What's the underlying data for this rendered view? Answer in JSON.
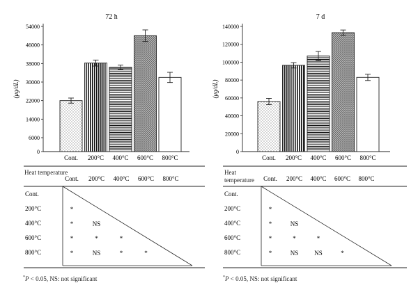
{
  "chart_data": [
    {
      "type": "bar",
      "title": "72 h",
      "ylabel": "(μg/dL)",
      "categories": [
        "Cont.",
        "200°C",
        "400°C",
        "600°C",
        "800°C"
      ],
      "values": [
        22000,
        38200,
        36400,
        50000,
        32000
      ],
      "errors": [
        1100,
        1300,
        900,
        2500,
        2200
      ],
      "ylim": [
        0,
        54000
      ],
      "yticks": [
        "0",
        "6000",
        "14000",
        "22000",
        "30000",
        "38000",
        "46000",
        "54000"
      ],
      "patterns": [
        "dots",
        "vlines",
        "hlines",
        "crosshatch",
        "none"
      ],
      "significance": {
        "header_label": "Heat temperature",
        "rows": [
          "Cont.",
          "200°C",
          "400°C",
          "600°C",
          "800°C"
        ],
        "cols": [
          "Cont.",
          "200°C",
          "400°C",
          "600°C",
          "800°C"
        ],
        "matrix": [
          [],
          [
            "*"
          ],
          [
            "*",
            "NS"
          ],
          [
            "*",
            "*",
            "*"
          ],
          [
            "*",
            "NS",
            "*",
            "*"
          ]
        ]
      },
      "footnote": {
        "star": "*",
        "p": "P",
        "rest": " < 0.05, NS: not significant"
      }
    },
    {
      "type": "bar",
      "title": "7 d",
      "ylabel": "(μg/dL)",
      "categories": [
        "Cont.",
        "200°C",
        "400°C",
        "600°C",
        "800°C"
      ],
      "values": [
        56000,
        96500,
        107000,
        133000,
        83000
      ],
      "errors": [
        3500,
        3000,
        5000,
        3000,
        3500
      ],
      "ylim": [
        0,
        140000
      ],
      "yticks": [
        "0",
        "20000",
        "40000",
        "60000",
        "80000",
        "100000",
        "120000",
        "140000"
      ],
      "patterns": [
        "dots",
        "vlines",
        "hlines",
        "crosshatch",
        "none"
      ],
      "significance": {
        "header_label": "Heat temperature",
        "rows": [
          "Cont.",
          "200°C",
          "400°C",
          "600°C",
          "800°C"
        ],
        "cols": [
          "Cont.",
          "200°C",
          "400°C",
          "600°C",
          "800°C"
        ],
        "matrix": [
          [],
          [
            "*"
          ],
          [
            "*",
            "NS"
          ],
          [
            "*",
            "*",
            "*"
          ],
          [
            "*",
            "NS",
            "NS",
            "*"
          ]
        ]
      },
      "footnote": {
        "star": "*",
        "p": "P",
        "rest": " < 0.05, NS: not significant"
      }
    }
  ]
}
